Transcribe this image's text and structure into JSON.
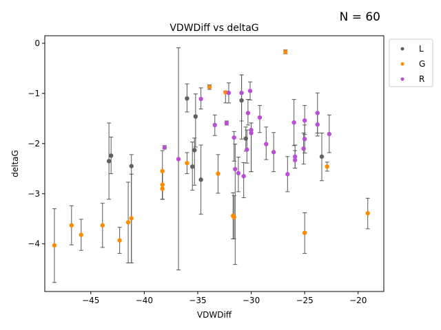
{
  "count_label": "N = 60",
  "chart_data": {
    "type": "scatter",
    "title": "VDWDiff vs deltaG",
    "xlabel": "VDWDiff",
    "ylabel": "deltaG",
    "xlim": [
      -49.3,
      -17.6
    ],
    "ylim": [
      -4.95,
      0.15
    ],
    "xticks": [
      -45,
      -40,
      -35,
      -30,
      -25,
      -20
    ],
    "xtick_labels": [
      "−45",
      "−40",
      "−35",
      "−30",
      "−25",
      "−20"
    ],
    "yticks": [
      0,
      -1,
      -2,
      -3,
      -4
    ],
    "ytick_labels": [
      "0",
      "−1",
      "−2",
      "−3",
      "−4"
    ],
    "legend_position": "outside-top-right",
    "series": [
      {
        "name": "L",
        "color": "#606060",
        "points": [
          {
            "x": -43.3,
            "y": -2.35,
            "lo": -3.11,
            "hi": -1.59
          },
          {
            "x": -43.1,
            "y": -2.24,
            "lo": -2.6,
            "hi": -1.87
          },
          {
            "x": -41.2,
            "y": -2.45,
            "lo": -4.38,
            "hi": -2.22
          },
          {
            "x": -36.0,
            "y": -1.1,
            "lo": -1.37,
            "hi": -0.81
          },
          {
            "x": -35.5,
            "y": -2.46,
            "lo": -2.93,
            "hi": -1.97
          },
          {
            "x": -35.3,
            "y": -2.13,
            "lo": -2.83,
            "hi": -1.89
          },
          {
            "x": -35.2,
            "y": -1.46,
            "lo": -2.07,
            "hi": -1.01
          },
          {
            "x": -34.7,
            "y": -2.72,
            "lo": -3.41,
            "hi": -2.03
          },
          {
            "x": -30.9,
            "y": -1.14,
            "lo": -1.91,
            "hi": -0.63
          },
          {
            "x": -30.5,
            "y": -1.9,
            "lo": -2.15,
            "hi": -1.67
          },
          {
            "x": -23.4,
            "y": -2.26,
            "lo": -2.74,
            "hi": -1.79
          }
        ]
      },
      {
        "name": "G",
        "color": "#ff8c00",
        "points": [
          {
            "x": -48.4,
            "y": -4.03,
            "lo": -4.77,
            "hi": -3.3
          },
          {
            "x": -46.8,
            "y": -3.63,
            "lo": -4.02,
            "hi": -3.24
          },
          {
            "x": -45.9,
            "y": -3.82,
            "lo": -4.13,
            "hi": -3.51
          },
          {
            "x": -43.9,
            "y": -3.63,
            "lo": -4.07,
            "hi": -3.19
          },
          {
            "x": -42.3,
            "y": -3.93,
            "lo": -4.19,
            "hi": -3.67
          },
          {
            "x": -41.5,
            "y": -3.57,
            "lo": -4.38,
            "hi": -2.77
          },
          {
            "x": -41.2,
            "y": -3.49,
            "lo": -4.38,
            "hi": -2.61
          },
          {
            "x": -38.3,
            "y": -2.55,
            "lo": -3.11,
            "hi": -2.14
          },
          {
            "x": -38.3,
            "y": -2.82,
            "lo": -3.11,
            "hi": -2.55
          },
          {
            "x": -38.3,
            "y": -2.9,
            "lo": -3.11,
            "hi": -2.55
          },
          {
            "x": -36.0,
            "y": -2.39,
            "lo": -2.6,
            "hi": -2.18
          },
          {
            "x": -33.9,
            "y": -0.87,
            "lo": -0.92,
            "hi": -0.83
          },
          {
            "x": -33.1,
            "y": -2.6,
            "lo": -2.99,
            "hi": -2.22
          },
          {
            "x": -32.4,
            "y": -0.98,
            "lo": -1.19,
            "hi": -0.95
          },
          {
            "x": -31.7,
            "y": -3.44,
            "lo": -3.9,
            "hi": -2.98
          },
          {
            "x": -31.6,
            "y": -3.47,
            "lo": -3.9,
            "hi": -3.04
          },
          {
            "x": -26.8,
            "y": -0.17,
            "lo": -0.21,
            "hi": -0.13
          },
          {
            "x": -25.0,
            "y": -3.78,
            "lo": -4.19,
            "hi": -3.38
          },
          {
            "x": -22.9,
            "y": -2.46,
            "lo": -2.55,
            "hi": -2.37
          },
          {
            "x": -19.1,
            "y": -3.39,
            "lo": -3.7,
            "hi": -3.09
          }
        ]
      },
      {
        "name": "R",
        "color": "#b94fd4",
        "points": [
          {
            "x": -38.1,
            "y": -2.08,
            "lo": -2.11,
            "hi": -2.04
          },
          {
            "x": -36.8,
            "y": -2.31,
            "lo": -4.52,
            "hi": -0.09
          },
          {
            "x": -34.7,
            "y": -1.11,
            "lo": -1.31,
            "hi": -0.89
          },
          {
            "x": -33.4,
            "y": -1.63,
            "lo": -1.84,
            "hi": -1.43
          },
          {
            "x": -32.3,
            "y": -1.59,
            "lo": -1.63,
            "hi": -1.55
          },
          {
            "x": -32.1,
            "y": -0.99,
            "lo": -1.19,
            "hi": -0.79
          },
          {
            "x": -31.6,
            "y": -1.88,
            "lo": -2.35,
            "hi": -1.76
          },
          {
            "x": -31.5,
            "y": -2.51,
            "lo": -4.41,
            "hi": -2.01
          },
          {
            "x": -31.2,
            "y": -2.59,
            "lo": -2.96,
            "hi": -2.27
          },
          {
            "x": -30.9,
            "y": -0.99,
            "lo": -1.55,
            "hi": -0.63
          },
          {
            "x": -30.7,
            "y": -2.65,
            "lo": -3.08,
            "hi": -2.38
          },
          {
            "x": -30.4,
            "y": -2.12,
            "lo": -2.39,
            "hi": -1.73
          },
          {
            "x": -30.3,
            "y": -1.39,
            "lo": -1.63,
            "hi": -1.12
          },
          {
            "x": -30.1,
            "y": -0.95,
            "lo": -1.13,
            "hi": -0.77
          },
          {
            "x": -30.0,
            "y": -1.73,
            "lo": -2.56,
            "hi": -1.59
          },
          {
            "x": -30.0,
            "y": -1.79,
            "lo": -2.56,
            "hi": -1.59
          },
          {
            "x": -29.2,
            "y": -1.48,
            "lo": -1.78,
            "hi": -1.24
          },
          {
            "x": -28.6,
            "y": -2.01,
            "lo": -2.32,
            "hi": -1.67
          },
          {
            "x": -27.9,
            "y": -2.17,
            "lo": -2.56,
            "hi": -1.78
          },
          {
            "x": -26.6,
            "y": -2.61,
            "lo": -2.96,
            "hi": -2.26
          },
          {
            "x": -26.0,
            "y": -1.58,
            "lo": -2.04,
            "hi": -1.12
          },
          {
            "x": -25.9,
            "y": -2.26,
            "lo": -2.49,
            "hi": -2.03
          },
          {
            "x": -25.9,
            "y": -2.33,
            "lo": -2.49,
            "hi": -2.14
          },
          {
            "x": -25.1,
            "y": -2.1,
            "lo": -2.41,
            "hi": -1.79
          },
          {
            "x": -25.0,
            "y": -1.54,
            "lo": -1.82,
            "hi": -1.24
          },
          {
            "x": -25.0,
            "y": -1.91,
            "lo": -2.19,
            "hi": -1.63
          },
          {
            "x": -23.8,
            "y": -1.39,
            "lo": -1.79,
            "hi": -0.99
          },
          {
            "x": -23.8,
            "y": -1.62,
            "lo": -1.85,
            "hi": -1.39
          },
          {
            "x": -22.7,
            "y": -1.81,
            "lo": -2.18,
            "hi": -1.43
          }
        ]
      }
    ]
  }
}
